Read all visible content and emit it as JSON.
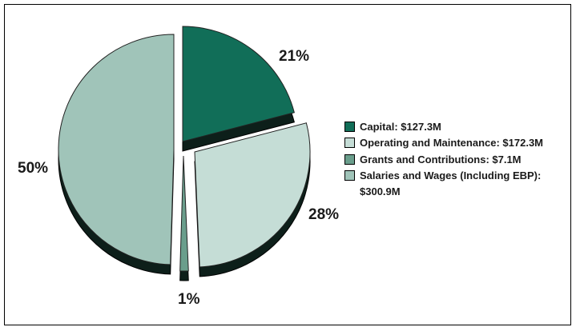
{
  "chart_data": {
    "type": "pie",
    "title": "",
    "legend_position": "right",
    "slices": [
      {
        "label": "Capital: $127.3M",
        "value": 127.3,
        "percent_label": "21%",
        "color": "#116e58"
      },
      {
        "label": "Operating and Maintenance: $172.3M",
        "value": 172.3,
        "percent_label": "28%",
        "color": "#c5ddd6"
      },
      {
        "label": "Grants and Contributions: $7.1M",
        "value": 7.1,
        "percent_label": "1%",
        "color": "#6a9e8c"
      },
      {
        "label": "Salaries and Wages (Including EBP):",
        "label_cont": "$300.9M",
        "value": 300.9,
        "percent_label": "50%",
        "color": "#a0c4b9"
      }
    ]
  }
}
